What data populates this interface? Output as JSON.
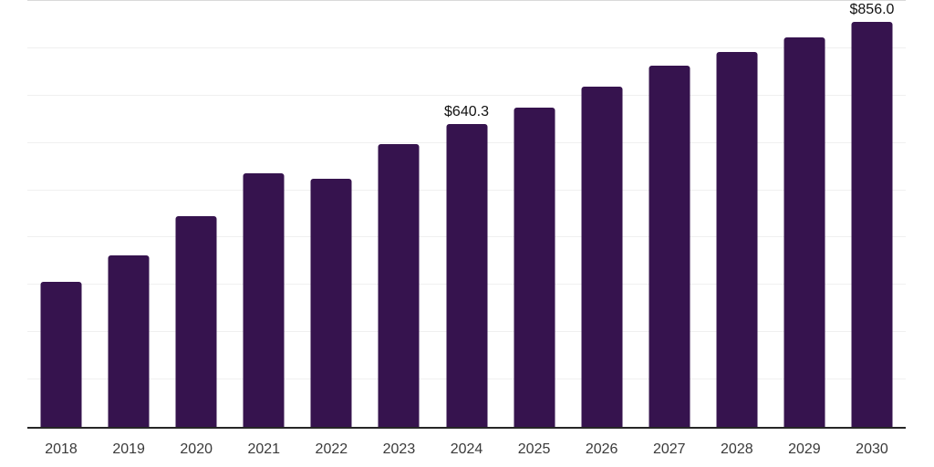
{
  "chart_data": {
    "type": "bar",
    "title": "",
    "xlabel": "",
    "ylabel": "",
    "categories": [
      "2018",
      "2019",
      "2020",
      "2021",
      "2022",
      "2023",
      "2024",
      "2025",
      "2026",
      "2027",
      "2028",
      "2029",
      "2030"
    ],
    "values": [
      306.9,
      363.3,
      444.8,
      535.4,
      524.6,
      597.3,
      640.3,
      673.7,
      719.2,
      763.3,
      791.9,
      823.3,
      856.0
    ],
    "data_labels": [
      "",
      "",
      "",
      "",
      "",
      "",
      "$640.3",
      "",
      "",
      "",
      "",
      "",
      "$856.0"
    ],
    "ylim": [
      0,
      900
    ],
    "grid_step": 100,
    "grid": true,
    "legend": false,
    "y_tick_labels_visible": false,
    "colors": {
      "background": "#ffffff",
      "bar": "#36134e",
      "grid": "#f0f0f0",
      "top_grid": "#d9d9d9",
      "axis": "#262626",
      "data_label": "#111111",
      "tick_label": "#3a3a3a"
    }
  }
}
